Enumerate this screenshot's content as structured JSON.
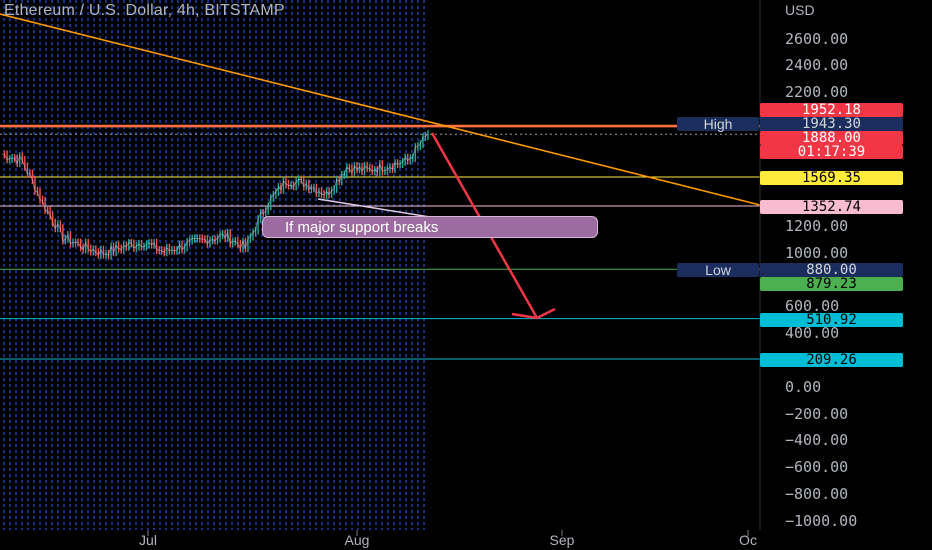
{
  "header": {
    "title": "Ethereum / U.S. Dollar, 4h, BITSTAMP",
    "currency": "USD"
  },
  "colors": {
    "background": "#000000",
    "grid": "#2962ff",
    "up": "#26a69a",
    "down": "#ef5350",
    "trendline": "#ff9800",
    "arrow": "#f23645"
  },
  "chart_data": {
    "type": "line",
    "title": "Ethereum / U.S. Dollar, 4h, BITSTAMP",
    "ylim": [
      -1000,
      2850
    ],
    "y_ticks": [
      "2600.00",
      "2400.00",
      "2200.00",
      "1200.00",
      "1000.00",
      "600.00",
      "400.00",
      "0.00",
      "−200.00",
      "−400.00",
      "−600.00",
      "−800.00",
      "−1000.00"
    ],
    "x_ticks": [
      "Jul",
      "Aug",
      "Sep",
      "Oc"
    ],
    "x": [
      "Jun 15",
      "Jun 17",
      "Jun 19",
      "Jun 21",
      "Jun 24",
      "Jun 27",
      "Jun 30",
      "Jul 3",
      "Jul 6",
      "Jul 9",
      "Jul 12",
      "Jul 15",
      "Jul 18",
      "Jul 20",
      "Jul 23",
      "Jul 26",
      "Jul 28",
      "Jul 31",
      "Aug 3",
      "Aug 6",
      "Aug 9",
      "Aug 11"
    ],
    "series": [
      {
        "values": [
          1740,
          1690,
          1380,
          1120,
          1050,
          1000,
          1050,
          1080,
          1010,
          1060,
          1100,
          1130,
          1040,
          1350,
          1540,
          1520,
          1440,
          1640,
          1620,
          1650,
          1690,
          1888
        ]
      }
    ],
    "levels": [
      {
        "label": "High",
        "value": 1943.3,
        "text": "1943.30",
        "color": "#ff6a4d"
      },
      {
        "value": 1952.18,
        "text": "1952.18",
        "color": "#f23645"
      },
      {
        "value": 1888.0,
        "text": "1888.00",
        "color": "#f23645"
      },
      {
        "value": 1569.35,
        "text": "1569.35",
        "color": "#ffeb3b"
      },
      {
        "value": 1352.74,
        "text": "1352.74",
        "color": "#f8bbd0"
      },
      {
        "label": "Low",
        "value": 880.0,
        "text": "880.00",
        "color": "#4caf50"
      },
      {
        "value": 879.23,
        "text": "879.23",
        "color": "#4caf50"
      },
      {
        "value": 510.92,
        "text": "510.92",
        "color": "#00bcd4"
      },
      {
        "value": 209.26,
        "text": "209.26",
        "color": "#00bcd4"
      }
    ],
    "countdown": "01:17:39",
    "annotation": "If major support breaks"
  }
}
